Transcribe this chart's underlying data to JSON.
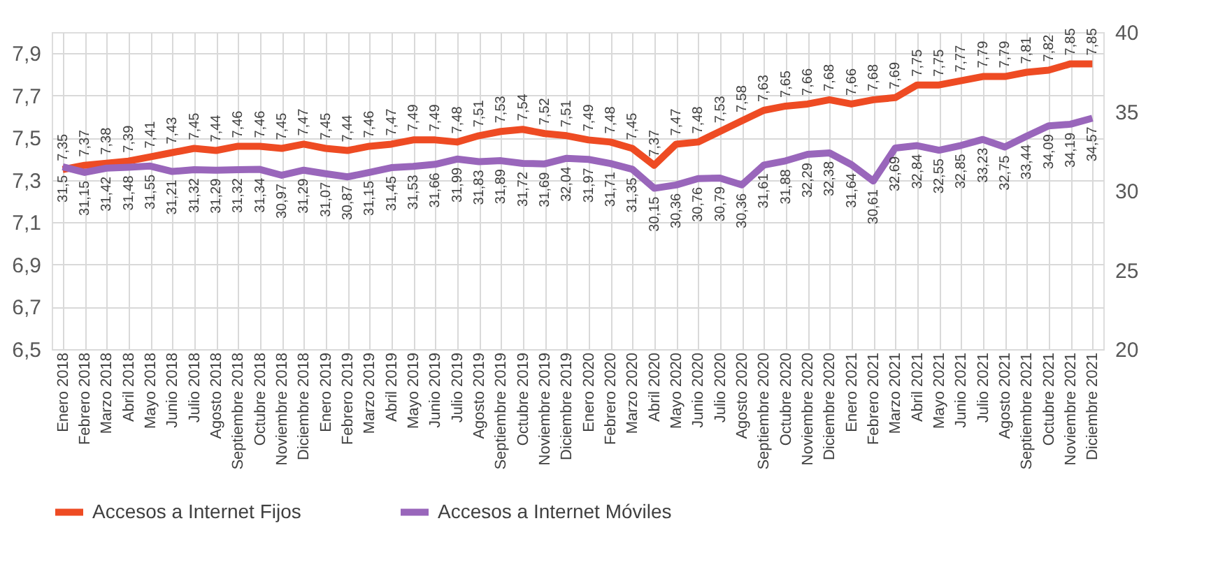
{
  "chart_data": {
    "type": "line",
    "categories": [
      "Enero 2018",
      "Febrero 2018",
      "Marzo 2018",
      "Abril 2018",
      "Mayo 2018",
      "Junio 2018",
      "Julio 2018",
      "Agosto 2018",
      "Septiembre 2018",
      "Octubre 2018",
      "Noviembre 2018",
      "Diciembre 2018",
      "Enero 2019",
      "Febrero 2019",
      "Marzo 2019",
      "Abril 2019",
      "Mayo 2019",
      "Junio 2019",
      "Julio 2019",
      "Agosto 2019",
      "Septiembre 2019",
      "Octubre 2019",
      "Noviembre 2019",
      "Diciembre 2019",
      "Enero 2020",
      "Febrero 2020",
      "Marzo 2020",
      "Abril 2020",
      "Mayo 2020",
      "Junio 2020",
      "Julio 2020",
      "Agosto 2020",
      "Septiembre 2020",
      "Octubre 2020",
      "Noviembre 2020",
      "Diciembre 2020",
      "Enero 2021",
      "Febrero 2021",
      "Marzo 2021",
      "Abril 2021",
      "Mayo 2021",
      "Junio 2021",
      "Julio 2021",
      "Agosto 2021",
      "Septiembre 2021",
      "Octubre 2021",
      "Noviembre 2021",
      "Diciembre 2021"
    ],
    "series": [
      {
        "name": "Accesos a Internet Fijos",
        "color": "#ee4b23",
        "values": [
          7.35,
          7.37,
          7.38,
          7.39,
          7.41,
          7.43,
          7.45,
          7.44,
          7.46,
          7.46,
          7.45,
          7.47,
          7.45,
          7.44,
          7.46,
          7.47,
          7.49,
          7.49,
          7.48,
          7.51,
          7.53,
          7.54,
          7.52,
          7.51,
          7.49,
          7.48,
          7.45,
          7.37,
          7.47,
          7.48,
          7.53,
          7.58,
          7.63,
          7.65,
          7.66,
          7.68,
          7.66,
          7.68,
          7.69,
          7.75,
          7.75,
          7.77,
          7.79,
          7.79,
          7.81,
          7.82,
          7.85,
          7.85
        ],
        "value_labels": [
          "7,35",
          "7,37",
          "7,38",
          "7,39",
          "7,41",
          "7,43",
          "7,45",
          "7,44",
          "7,46",
          "7,46",
          "7,45",
          "7,47",
          "7,45",
          "7,44",
          "7,46",
          "7,47",
          "7,49",
          "7,49",
          "7,48",
          "7,51",
          "7,53",
          "7,54",
          "7,52",
          "7,51",
          "7,49",
          "7,48",
          "7,45",
          "7,37",
          "7,47",
          "7,48",
          "7,53",
          "7,58",
          "7,63",
          "7,65",
          "7,66",
          "7,68",
          "7,66",
          "7,68",
          "7,69",
          "7,75",
          "7,75",
          "7,77",
          "7,79",
          "7,79",
          "7,81",
          "7,82",
          "7,85",
          "7,85"
        ]
      },
      {
        "name": "Accesos a Internet Móviles",
        "color": "#9966bb",
        "axis": "y2",
        "values": [
          31.5,
          31.15,
          31.42,
          31.48,
          31.55,
          31.21,
          31.32,
          31.29,
          31.32,
          31.34,
          30.97,
          31.29,
          31.07,
          30.87,
          31.15,
          31.45,
          31.53,
          31.66,
          31.99,
          31.83,
          31.89,
          31.72,
          31.69,
          32.04,
          31.97,
          31.71,
          31.35,
          30.15,
          30.36,
          30.76,
          30.79,
          30.36,
          31.61,
          31.88,
          32.29,
          32.38,
          31.64,
          30.61,
          32.69,
          32.84,
          32.55,
          32.85,
          33.23,
          32.75,
          33.44,
          34.09,
          34.19,
          34.57
        ],
        "value_labels": [
          "31,5",
          "31,15",
          "31,42",
          "31,48",
          "31,55",
          "31,21",
          "31,32",
          "31,29",
          "31,32",
          "31,34",
          "30,97",
          "31,29",
          "31,07",
          "30,87",
          "31,15",
          "31,45",
          "31,53",
          "31,66",
          "31,99",
          "31,83",
          "31,89",
          "31,72",
          "31,69",
          "32,04",
          "31,97",
          "31,71",
          "31,35",
          "30,15",
          "30,36",
          "30,76",
          "30,79",
          "30,36",
          "31,61",
          "31,88",
          "32,29",
          "32,38",
          "31,64",
          "30,61",
          "32,69",
          "32,84",
          "32,55",
          "32,85",
          "33,23",
          "32,75",
          "33,44",
          "34,09",
          "34,19",
          "34,57"
        ]
      }
    ],
    "ylim": [
      6.5,
      8.0
    ],
    "yticks": [
      {
        "value": 6.5,
        "label": "6,5"
      },
      {
        "value": 6.7,
        "label": "6,7"
      },
      {
        "value": 6.9,
        "label": "6,9"
      },
      {
        "value": 7.1,
        "label": "7,1"
      },
      {
        "value": 7.3,
        "label": "7,3"
      },
      {
        "value": 7.5,
        "label": "7,5"
      },
      {
        "value": 7.7,
        "label": "7,7"
      },
      {
        "value": 7.9,
        "label": "7,9"
      }
    ],
    "y2lim": [
      20,
      40
    ],
    "y2ticks": [
      20,
      25,
      30,
      35,
      40
    ],
    "grid": true,
    "legend": "bottom",
    "marker": "none",
    "line_style": "solid"
  }
}
